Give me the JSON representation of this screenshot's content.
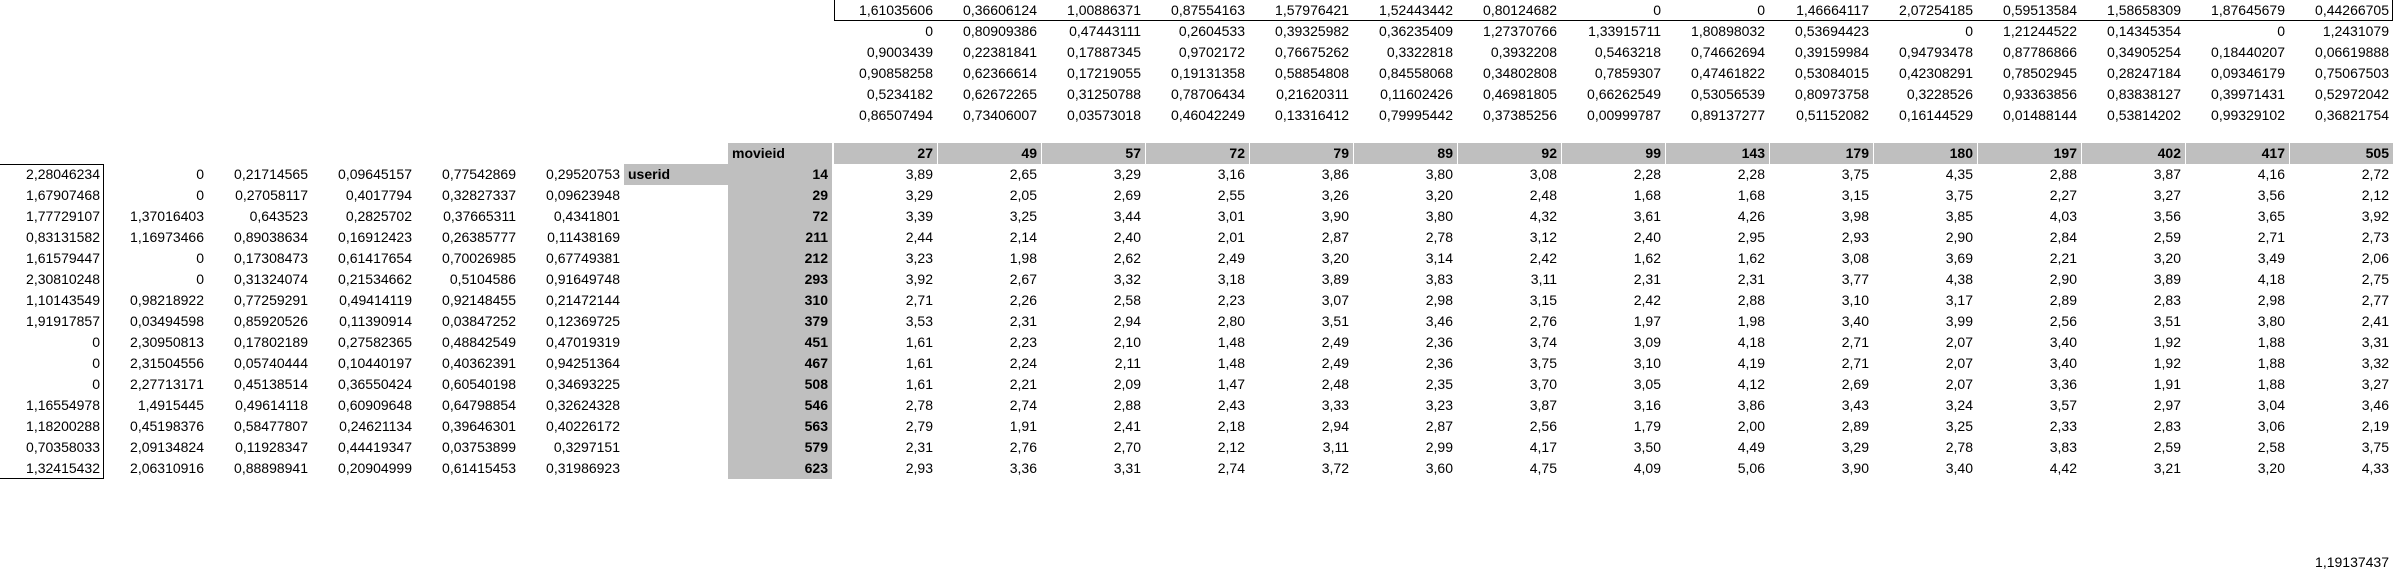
{
  "top_rows": [
    [
      "1,61035606",
      "0,36606124",
      "1,00886371",
      "0,87554163",
      "1,57976421",
      "1,52443442",
      "0,80124682",
      "0",
      "0",
      "1,46664117",
      "2,07254185",
      "0,59513584",
      "1,58658309",
      "1,87645679",
      "0,44266705"
    ],
    [
      "0",
      "0,80909386",
      "0,47443111",
      "0,2604533",
      "0,39325982",
      "0,36235409",
      "1,27370766",
      "1,33915711",
      "1,80898032",
      "0,53694423",
      "0",
      "1,21244522",
      "0,14345354",
      "0",
      "1,2431079"
    ],
    [
      "0,9003439",
      "0,22381841",
      "0,17887345",
      "0,9702172",
      "0,76675262",
      "0,3322818",
      "0,3932208",
      "0,5463218",
      "0,74662694",
      "0,39159984",
      "0,94793478",
      "0,87786866",
      "0,34905254",
      "0,18440207",
      "0,06619888"
    ],
    [
      "0,90858258",
      "0,62366614",
      "0,17219055",
      "0,19131358",
      "0,58854808",
      "0,84558068",
      "0,34802808",
      "0,7859307",
      "0,47461822",
      "0,53084015",
      "0,42308291",
      "0,78502945",
      "0,28247184",
      "0,09346179",
      "0,75067503"
    ],
    [
      "0,5234182",
      "0,62672265",
      "0,31250788",
      "0,78706434",
      "0,21620311",
      "0,11602426",
      "0,46981805",
      "0,66262549",
      "0,53056539",
      "0,80973758",
      "0,3228526",
      "0,93363856",
      "0,83838127",
      "0,39971431",
      "0,52972042"
    ],
    [
      "0,86507494",
      "0,73406007",
      "0,03573018",
      "0,46042249",
      "0,13316412",
      "0,79995442",
      "0,37385256",
      "0,00999787",
      "0,89137277",
      "0,51152082",
      "0,16144529",
      "0,01488144",
      "0,53814202",
      "0,99329102",
      "0,36821754"
    ]
  ],
  "header": {
    "movieid_label": "movieid",
    "userid_label": "userid",
    "movie_ids": [
      "27",
      "49",
      "57",
      "72",
      "79",
      "89",
      "92",
      "99",
      "143",
      "179",
      "180",
      "197",
      "402",
      "417",
      "505"
    ]
  },
  "rows": [
    {
      "left": [
        "2,28046234",
        "0",
        "0,21714565",
        "0,09645157",
        "0,77542869",
        "0,29520753"
      ],
      "user": "14",
      "vals": [
        "3,89",
        "2,65",
        "3,29",
        "3,16",
        "3,86",
        "3,80",
        "3,08",
        "2,28",
        "2,28",
        "3,75",
        "4,35",
        "2,88",
        "3,87",
        "4,16",
        "2,72"
      ]
    },
    {
      "left": [
        "1,67907468",
        "0",
        "0,27058117",
        "0,4017794",
        "0,32827337",
        "0,09623948"
      ],
      "user": "29",
      "vals": [
        "3,29",
        "2,05",
        "2,69",
        "2,55",
        "3,26",
        "3,20",
        "2,48",
        "1,68",
        "1,68",
        "3,15",
        "3,75",
        "2,27",
        "3,27",
        "3,56",
        "2,12"
      ]
    },
    {
      "left": [
        "1,77729107",
        "1,37016403",
        "0,643523",
        "0,2825702",
        "0,37665311",
        "0,4341801"
      ],
      "user": "72",
      "vals": [
        "3,39",
        "3,25",
        "3,44",
        "3,01",
        "3,90",
        "3,80",
        "4,32",
        "3,61",
        "4,26",
        "3,98",
        "3,85",
        "4,03",
        "3,56",
        "3,65",
        "3,92"
      ]
    },
    {
      "left": [
        "0,83131582",
        "1,16973466",
        "0,89038634",
        "0,16912423",
        "0,26385777",
        "0,11438169"
      ],
      "user": "211",
      "vals": [
        "2,44",
        "2,14",
        "2,40",
        "2,01",
        "2,87",
        "2,78",
        "3,12",
        "2,40",
        "2,95",
        "2,93",
        "2,90",
        "2,84",
        "2,59",
        "2,71",
        "2,73"
      ]
    },
    {
      "left": [
        "1,61579447",
        "0",
        "0,17308473",
        "0,61417654",
        "0,70026985",
        "0,67749381"
      ],
      "user": "212",
      "vals": [
        "3,23",
        "1,98",
        "2,62",
        "2,49",
        "3,20",
        "3,14",
        "2,42",
        "1,62",
        "1,62",
        "3,08",
        "3,69",
        "2,21",
        "3,20",
        "3,49",
        "2,06"
      ]
    },
    {
      "left": [
        "2,30810248",
        "0",
        "0,31324074",
        "0,21534662",
        "0,5104586",
        "0,91649748"
      ],
      "user": "293",
      "vals": [
        "3,92",
        "2,67",
        "3,32",
        "3,18",
        "3,89",
        "3,83",
        "3,11",
        "2,31",
        "2,31",
        "3,77",
        "4,38",
        "2,90",
        "3,89",
        "4,18",
        "2,75"
      ]
    },
    {
      "left": [
        "1,10143549",
        "0,98218922",
        "0,77259291",
        "0,49414119",
        "0,92148455",
        "0,21472144"
      ],
      "user": "310",
      "vals": [
        "2,71",
        "2,26",
        "2,58",
        "2,23",
        "3,07",
        "2,98",
        "3,15",
        "2,42",
        "2,88",
        "3,10",
        "3,17",
        "2,89",
        "2,83",
        "2,98",
        "2,77"
      ]
    },
    {
      "left": [
        "1,91917857",
        "0,03494598",
        "0,85920526",
        "0,11390914",
        "0,03847252",
        "0,12369725"
      ],
      "user": "379",
      "vals": [
        "3,53",
        "2,31",
        "2,94",
        "2,80",
        "3,51",
        "3,46",
        "2,76",
        "1,97",
        "1,98",
        "3,40",
        "3,99",
        "2,56",
        "3,51",
        "3,80",
        "2,41"
      ]
    },
    {
      "left": [
        "0",
        "2,30950813",
        "0,17802189",
        "0,27582365",
        "0,48842549",
        "0,47019319"
      ],
      "user": "451",
      "vals": [
        "1,61",
        "2,23",
        "2,10",
        "1,48",
        "2,49",
        "2,36",
        "3,74",
        "3,09",
        "4,18",
        "2,71",
        "2,07",
        "3,40",
        "1,92",
        "1,88",
        "3,31"
      ]
    },
    {
      "left": [
        "0",
        "2,31504556",
        "0,05740444",
        "0,10440197",
        "0,40362391",
        "0,94251364"
      ],
      "user": "467",
      "vals": [
        "1,61",
        "2,24",
        "2,11",
        "1,48",
        "2,49",
        "2,36",
        "3,75",
        "3,10",
        "4,19",
        "2,71",
        "2,07",
        "3,40",
        "1,92",
        "1,88",
        "3,32"
      ]
    },
    {
      "left": [
        "0",
        "2,27713171",
        "0,45138514",
        "0,36550424",
        "0,60540198",
        "0,34693225"
      ],
      "user": "508",
      "vals": [
        "1,61",
        "2,21",
        "2,09",
        "1,47",
        "2,48",
        "2,35",
        "3,70",
        "3,05",
        "4,12",
        "2,69",
        "2,07",
        "3,36",
        "1,91",
        "1,88",
        "3,27"
      ]
    },
    {
      "left": [
        "1,16554978",
        "1,4915445",
        "0,49614118",
        "0,60909648",
        "0,64798854",
        "0,32624328"
      ],
      "user": "546",
      "vals": [
        "2,78",
        "2,74",
        "2,88",
        "2,43",
        "3,33",
        "3,23",
        "3,87",
        "3,16",
        "3,86",
        "3,43",
        "3,24",
        "3,57",
        "2,97",
        "3,04",
        "3,46"
      ]
    },
    {
      "left": [
        "1,18200288",
        "0,45198376",
        "0,58477807",
        "0,24621134",
        "0,39646301",
        "0,40226172"
      ],
      "user": "563",
      "vals": [
        "2,79",
        "1,91",
        "2,41",
        "2,18",
        "2,94",
        "2,87",
        "2,56",
        "1,79",
        "2,00",
        "2,89",
        "3,25",
        "2,33",
        "2,83",
        "3,06",
        "2,19"
      ]
    },
    {
      "left": [
        "0,70358033",
        "2,09134824",
        "0,11928347",
        "0,44419347",
        "0,03753899",
        "0,3297151"
      ],
      "user": "579",
      "vals": [
        "2,31",
        "2,76",
        "2,70",
        "2,12",
        "3,11",
        "2,99",
        "4,17",
        "3,50",
        "4,49",
        "3,29",
        "2,78",
        "3,83",
        "2,59",
        "2,58",
        "3,75"
      ]
    },
    {
      "left": [
        "1,32415432",
        "2,06310916",
        "0,88898941",
        "0,20904999",
        "0,61415453",
        "0,31986923"
      ],
      "user": "623",
      "vals": [
        "2,93",
        "3,36",
        "3,31",
        "2,74",
        "3,72",
        "3,60",
        "4,75",
        "4,09",
        "5,06",
        "3,90",
        "3,40",
        "4,42",
        "3,21",
        "3,20",
        "4,33"
      ]
    }
  ],
  "footer_value": "1,19137437"
}
